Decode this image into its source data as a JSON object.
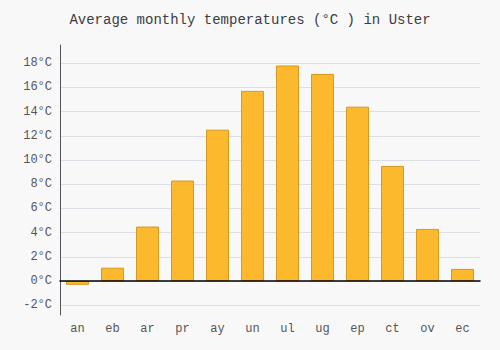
{
  "chart_data": {
    "type": "bar",
    "title": "Average monthly temperatures (°C ) in Uster",
    "categories": [
      "an",
      "eb",
      "ar",
      "pr",
      "ay",
      "un",
      "ul",
      "ug",
      "ep",
      "ct",
      "ov",
      "ec"
    ],
    "values": [
      -0.3,
      1.1,
      4.5,
      8.3,
      12.5,
      15.7,
      17.8,
      17.1,
      14.4,
      9.5,
      4.3,
      1.0
    ],
    "color": "#FDB92E",
    "ylim": [
      -2.8,
      19.5
    ],
    "yticks": [
      {
        "value": -2,
        "label": "-2°C"
      },
      {
        "value": 0,
        "label": "0°C"
      },
      {
        "value": 2,
        "label": "2°C"
      },
      {
        "value": 4,
        "label": "4°C"
      },
      {
        "value": 6,
        "label": "6°C"
      },
      {
        "value": 8,
        "label": "8°C"
      },
      {
        "value": 10,
        "label": "10°C"
      },
      {
        "value": 12,
        "label": "12°C"
      },
      {
        "value": 14,
        "label": "14°C"
      },
      {
        "value": 16,
        "label": "16°C"
      },
      {
        "value": 18,
        "label": "18°C"
      }
    ],
    "grid": true
  }
}
